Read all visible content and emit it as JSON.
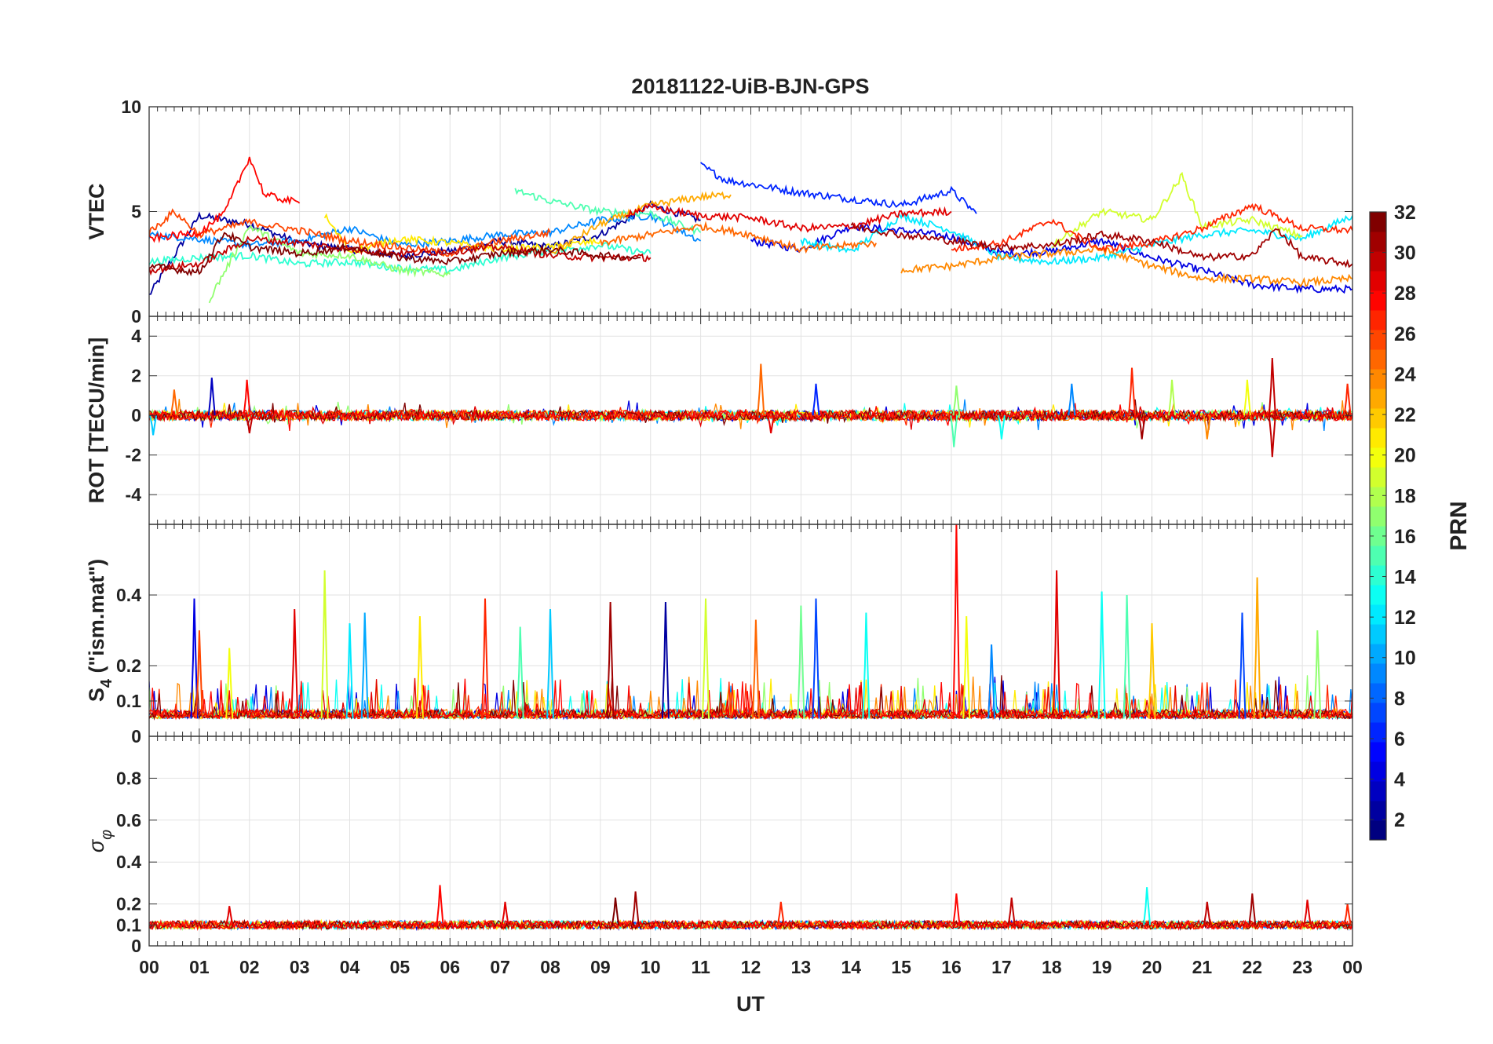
{
  "chart_data": {
    "type": "line",
    "title": "20181122-UiB-BJN-GPS",
    "xlabel": "UT",
    "x_range_hours": [
      0,
      24
    ],
    "x_tick_labels": [
      "00",
      "01",
      "02",
      "03",
      "04",
      "05",
      "06",
      "07",
      "08",
      "09",
      "10",
      "11",
      "12",
      "13",
      "14",
      "15",
      "16",
      "17",
      "18",
      "19",
      "20",
      "21",
      "22",
      "23",
      "00"
    ],
    "grid": true,
    "panels": [
      {
        "id": "vtec",
        "ylabel": "VTEC",
        "ylim": [
          0,
          10
        ],
        "y_ticks": [
          0,
          5,
          10
        ],
        "y_tick_labels": [
          "0",
          "5",
          "10"
        ],
        "series": [
          {
            "prn": 2,
            "x": [
              0,
              1,
              2,
              3,
              4,
              5,
              6,
              7,
              8,
              9,
              10,
              11
            ],
            "y": [
              1.0,
              4.8,
              4.4,
              3.5,
              3.2,
              2.9,
              3.1,
              3.6,
              3.3,
              3.9,
              5.3,
              4.6
            ]
          },
          {
            "prn": 4,
            "x": [
              12,
              13,
              14,
              15,
              16,
              17,
              18,
              19,
              20,
              21,
              22,
              23,
              24
            ],
            "y": [
              3.6,
              3.2,
              4.3,
              4.1,
              3.8,
              3.0,
              3.1,
              3.6,
              2.8,
              2.2,
              1.5,
              1.3,
              1.3
            ]
          },
          {
            "prn": 6,
            "x": [
              11,
              11.5,
              12,
              13,
              14,
              15,
              16,
              16.5
            ],
            "y": [
              7.2,
              6.5,
              6.3,
              5.9,
              5.6,
              5.3,
              6.0,
              4.9
            ]
          },
          {
            "prn": 9,
            "x": [
              0,
              1,
              2,
              3,
              4,
              5,
              6,
              7,
              8,
              9,
              10,
              11
            ],
            "y": [
              3.9,
              3.7,
              3.4,
              3.6,
              4.2,
              3.4,
              3.6,
              3.9,
              4.0,
              4.6,
              4.8,
              3.6
            ]
          },
          {
            "prn": 12,
            "x": [
              13,
              14,
              15,
              16,
              17,
              18,
              19,
              20,
              21,
              22,
              23,
              24
            ],
            "y": [
              3.6,
              3.1,
              4.8,
              4.1,
              2.8,
              2.6,
              2.8,
              3.4,
              3.9,
              4.1,
              3.7,
              4.8
            ]
          },
          {
            "prn": 14,
            "x": [
              0,
              1,
              2,
              3,
              4,
              5,
              6,
              7,
              8,
              9,
              10
            ],
            "y": [
              2.6,
              2.8,
              2.9,
              2.5,
              2.6,
              2.3,
              2.2,
              2.8,
              3.1,
              3.4,
              3.0
            ]
          },
          {
            "prn": 15,
            "x": [
              7.3,
              8,
              9,
              10,
              11
            ],
            "y": [
              6.0,
              5.5,
              5.0,
              4.9,
              4.0
            ]
          },
          {
            "prn": 17,
            "x": [
              1.2,
              2,
              3,
              4,
              5,
              6
            ],
            "y": [
              0.8,
              4.3,
              3.0,
              2.9,
              2.2,
              2.0
            ]
          },
          {
            "prn": 19,
            "x": [
              18,
              19,
              20,
              20.6,
              21,
              22,
              23
            ],
            "y": [
              3.4,
              5.0,
              4.6,
              6.7,
              4.3,
              4.6,
              3.8
            ]
          },
          {
            "prn": 21,
            "x": [
              3.5,
              4,
              5,
              6,
              7,
              8,
              9
            ],
            "y": [
              4.8,
              3.1,
              3.7,
              3.5,
              3.2,
              3.3,
              3.6
            ]
          },
          {
            "prn": 23,
            "x": [
              8,
              9,
              10,
              11,
              11.6
            ],
            "y": [
              3.0,
              4.4,
              5.3,
              5.7,
              5.8
            ]
          },
          {
            "prn": 24,
            "x": [
              15,
              16,
              17,
              18,
              19,
              20,
              21,
              22,
              23,
              24
            ],
            "y": [
              2.2,
              2.4,
              2.8,
              3.0,
              3.2,
              2.4,
              1.8,
              1.8,
              1.6,
              1.8
            ]
          },
          {
            "prn": 25,
            "x": [
              9,
              10,
              11,
              12,
              13,
              14,
              14.5
            ],
            "y": [
              3.5,
              3.9,
              4.3,
              3.9,
              3.2,
              3.4,
              3.5
            ]
          },
          {
            "prn": 26,
            "x": [
              0,
              0.5,
              1,
              2,
              3,
              4,
              5,
              6,
              7,
              8
            ],
            "y": [
              4.0,
              5.0,
              3.9,
              4.5,
              4.1,
              3.6,
              3.3,
              3.0,
              3.6,
              4.0
            ]
          },
          {
            "prn": 27,
            "x": [
              16,
              17,
              18,
              18.6,
              19,
              20,
              21,
              22,
              23,
              24
            ],
            "y": [
              3.2,
              3.5,
              4.6,
              3.7,
              3.2,
              3.5,
              4.2,
              5.3,
              4.2,
              4.1
            ]
          },
          {
            "prn": 28,
            "x": [
              0,
              1,
              1.5,
              2,
              2.3,
              3
            ],
            "y": [
              3.7,
              4.0,
              4.9,
              7.6,
              5.8,
              5.4
            ]
          },
          {
            "prn": 29,
            "x": [
              9.5,
              10,
              11,
              12,
              13,
              14,
              15,
              16
            ],
            "y": [
              4.9,
              5.2,
              4.8,
              4.7,
              4.2,
              4.3,
              4.9,
              5.0
            ]
          },
          {
            "prn": 30,
            "x": [
              0,
              1,
              2,
              3,
              4,
              5,
              6,
              7,
              8,
              9,
              10
            ],
            "y": [
              2.2,
              2.5,
              3.7,
              3.5,
              3.2,
              3.0,
              3.1,
              3.3,
              2.9,
              2.8,
              2.8
            ]
          },
          {
            "prn": 32,
            "x": [
              0,
              1,
              1.5,
              2,
              3,
              4,
              5,
              6,
              7,
              8,
              9,
              9.8
            ],
            "y": [
              2.4,
              2.1,
              4.0,
              3.3,
              3.0,
              3.3,
              2.8,
              2.6,
              3.0,
              3.2,
              2.9,
              2.8
            ]
          },
          {
            "prn": 31,
            "x": [
              14,
              15,
              16,
              17,
              18,
              19,
              20,
              21,
              22,
              22.5,
              23,
              24
            ],
            "y": [
              4.3,
              3.9,
              3.6,
              3.3,
              3.4,
              3.9,
              3.6,
              2.8,
              2.9,
              4.2,
              2.8,
              2.5
            ]
          }
        ]
      },
      {
        "id": "rot",
        "ylabel": "ROT [TECU/min]",
        "ylim": [
          -5.5,
          5
        ],
        "y_ticks": [
          -4,
          -2,
          0,
          2,
          4
        ],
        "y_tick_labels": [
          "-4",
          "-2",
          "0",
          "2",
          "4"
        ],
        "baseline": 0,
        "spikes": [
          {
            "x": 0.08,
            "y": -1.0,
            "prn": 11
          },
          {
            "x": 0.5,
            "y": 1.3,
            "prn": 25
          },
          {
            "x": 1.25,
            "y": 1.9,
            "prn": 3
          },
          {
            "x": 1.95,
            "y": 1.8,
            "prn": 28
          },
          {
            "x": 2.0,
            "y": -0.9,
            "prn": 30
          },
          {
            "x": 12.2,
            "y": 2.6,
            "prn": 25
          },
          {
            "x": 12.4,
            "y": -0.9,
            "prn": 29
          },
          {
            "x": 13.3,
            "y": 1.6,
            "prn": 6
          },
          {
            "x": 16.1,
            "y": 1.5,
            "prn": 17
          },
          {
            "x": 16.05,
            "y": -1.6,
            "prn": 15
          },
          {
            "x": 17.0,
            "y": -1.2,
            "prn": 13
          },
          {
            "x": 18.4,
            "y": 1.6,
            "prn": 9
          },
          {
            "x": 19.6,
            "y": 2.4,
            "prn": 27
          },
          {
            "x": 19.8,
            "y": -1.2,
            "prn": 31
          },
          {
            "x": 20.4,
            "y": 1.8,
            "prn": 18
          },
          {
            "x": 21.1,
            "y": -1.2,
            "prn": 24
          },
          {
            "x": 21.9,
            "y": 1.8,
            "prn": 20
          },
          {
            "x": 22.4,
            "y": 2.9,
            "prn": 30
          },
          {
            "x": 22.4,
            "y": -2.1,
            "prn": 30
          },
          {
            "x": 23.9,
            "y": 1.6,
            "prn": 27
          }
        ]
      },
      {
        "id": "s4",
        "ylabel": "S4 (\"ism.mat\")",
        "ylabel_main": "S",
        "ylabel_sub": "4",
        "ylabel_rest": " (\"ism.mat\")",
        "ylim": [
          0,
          0.6
        ],
        "y_ticks": [
          0,
          0.1,
          0.2,
          0.4
        ],
        "y_tick_labels": [
          "0",
          "0.1",
          "0.2",
          "0.4"
        ],
        "baseline": 0.05,
        "spikes": [
          {
            "x": 0.9,
            "y": 0.39,
            "prn": 4
          },
          {
            "x": 1.0,
            "y": 0.3,
            "prn": 26
          },
          {
            "x": 1.6,
            "y": 0.25,
            "prn": 20
          },
          {
            "x": 2.9,
            "y": 0.36,
            "prn": 29
          },
          {
            "x": 3.5,
            "y": 0.47,
            "prn": 19
          },
          {
            "x": 4.0,
            "y": 0.32,
            "prn": 12
          },
          {
            "x": 4.3,
            "y": 0.35,
            "prn": 10
          },
          {
            "x": 5.4,
            "y": 0.34,
            "prn": 21
          },
          {
            "x": 6.7,
            "y": 0.39,
            "prn": 27
          },
          {
            "x": 7.4,
            "y": 0.31,
            "prn": 15
          },
          {
            "x": 8.0,
            "y": 0.36,
            "prn": 11
          },
          {
            "x": 9.2,
            "y": 0.38,
            "prn": 31
          },
          {
            "x": 10.3,
            "y": 0.38,
            "prn": 2
          },
          {
            "x": 11.1,
            "y": 0.39,
            "prn": 19
          },
          {
            "x": 12.1,
            "y": 0.33,
            "prn": 25
          },
          {
            "x": 13.0,
            "y": 0.37,
            "prn": 16
          },
          {
            "x": 13.3,
            "y": 0.39,
            "prn": 7
          },
          {
            "x": 14.3,
            "y": 0.35,
            "prn": 13
          },
          {
            "x": 16.1,
            "y": 0.6,
            "prn": 28
          },
          {
            "x": 16.3,
            "y": 0.34,
            "prn": 20
          },
          {
            "x": 16.8,
            "y": 0.26,
            "prn": 9
          },
          {
            "x": 18.1,
            "y": 0.47,
            "prn": 29
          },
          {
            "x": 19.0,
            "y": 0.41,
            "prn": 13
          },
          {
            "x": 19.5,
            "y": 0.4,
            "prn": 15
          },
          {
            "x": 20.0,
            "y": 0.32,
            "prn": 22
          },
          {
            "x": 21.8,
            "y": 0.35,
            "prn": 7
          },
          {
            "x": 22.1,
            "y": 0.45,
            "prn": 23
          },
          {
            "x": 23.3,
            "y": 0.3,
            "prn": 17
          }
        ]
      },
      {
        "id": "sigma-phi",
        "ylabel": "σφ",
        "ylabel_main": "σ",
        "ylabel_sub": "φ",
        "ylim": [
          0,
          1
        ],
        "y_ticks": [
          0,
          0.1,
          0.2,
          0.4,
          0.6,
          0.8
        ],
        "y_tick_labels": [
          "0",
          "0.1",
          "0.2",
          "0.4",
          "0.6",
          "0.8"
        ],
        "baseline": 0.1,
        "spikes": [
          {
            "x": 1.6,
            "y": 0.19,
            "prn": 29
          },
          {
            "x": 5.8,
            "y": 0.29,
            "prn": 28
          },
          {
            "x": 7.1,
            "y": 0.21,
            "prn": 29
          },
          {
            "x": 9.3,
            "y": 0.23,
            "prn": 32
          },
          {
            "x": 9.7,
            "y": 0.26,
            "prn": 31
          },
          {
            "x": 12.6,
            "y": 0.21,
            "prn": 27
          },
          {
            "x": 16.1,
            "y": 0.25,
            "prn": 28
          },
          {
            "x": 17.2,
            "y": 0.23,
            "prn": 30
          },
          {
            "x": 19.9,
            "y": 0.28,
            "prn": 13
          },
          {
            "x": 21.1,
            "y": 0.21,
            "prn": 30
          },
          {
            "x": 22.0,
            "y": 0.25,
            "prn": 31
          },
          {
            "x": 23.1,
            "y": 0.22,
            "prn": 29
          },
          {
            "x": 23.9,
            "y": 0.2,
            "prn": 27
          }
        ]
      }
    ],
    "colorbar": {
      "label": "PRN",
      "colormap": "jet",
      "range": [
        1,
        32
      ],
      "tick_labels": [
        "2",
        "4",
        "6",
        "8",
        "10",
        "12",
        "14",
        "16",
        "18",
        "20",
        "22",
        "24",
        "26",
        "28",
        "30",
        "32"
      ],
      "tick_values": [
        2,
        4,
        6,
        8,
        10,
        12,
        14,
        16,
        18,
        20,
        22,
        24,
        26,
        28,
        30,
        32
      ],
      "placement": "right"
    }
  }
}
